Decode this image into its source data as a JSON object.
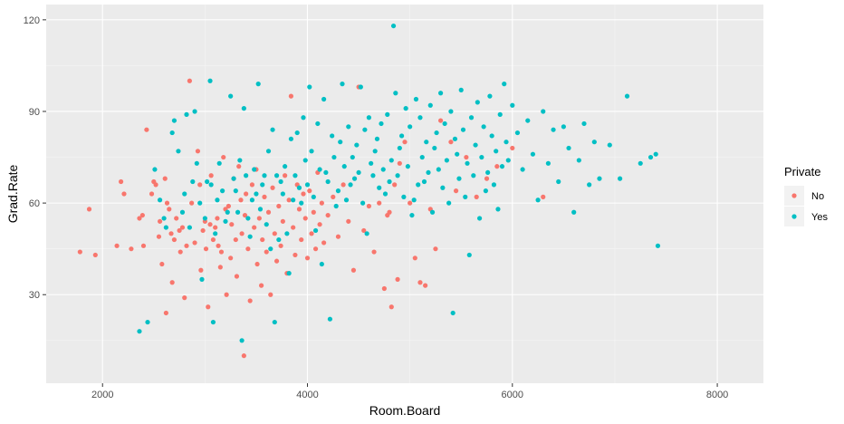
{
  "chart_data": {
    "type": "scatter",
    "xlabel": "Room.Board",
    "ylabel": "Grad.Rate",
    "xlim": [
      1450,
      8450
    ],
    "ylim": [
      1,
      125
    ],
    "x_ticks": [
      2000,
      4000,
      6000,
      8000
    ],
    "y_ticks": [
      30,
      60,
      90,
      120
    ],
    "x_tick_labels": [
      "2000",
      "4000",
      "6000",
      "8000"
    ],
    "y_tick_labels": [
      "30",
      "60",
      "90",
      "120"
    ],
    "grid": true,
    "legend": {
      "title": "Private",
      "position": "right",
      "entries": [
        {
          "label": "No",
          "color": "#F8766D"
        },
        {
          "label": "Yes",
          "color": "#00BFC4"
        }
      ]
    },
    "series": [
      {
        "name": "No",
        "color": "#F8766D",
        "points": [
          [
            1780,
            44
          ],
          [
            1870,
            58
          ],
          [
            1930,
            43
          ],
          [
            2140,
            46
          ],
          [
            2180,
            67
          ],
          [
            2210,
            63
          ],
          [
            2280,
            45
          ],
          [
            2360,
            55
          ],
          [
            2390,
            56
          ],
          [
            2400,
            46
          ],
          [
            2430,
            84
          ],
          [
            2480,
            63
          ],
          [
            2500,
            67
          ],
          [
            2520,
            66
          ],
          [
            2550,
            49
          ],
          [
            2560,
            54
          ],
          [
            2580,
            40
          ],
          [
            2610,
            68
          ],
          [
            2620,
            24
          ],
          [
            2630,
            60
          ],
          [
            2650,
            58
          ],
          [
            2670,
            50
          ],
          [
            2680,
            34
          ],
          [
            2700,
            48
          ],
          [
            2720,
            55
          ],
          [
            2750,
            51
          ],
          [
            2760,
            44
          ],
          [
            2780,
            52
          ],
          [
            2800,
            29
          ],
          [
            2820,
            46
          ],
          [
            2850,
            100
          ],
          [
            2870,
            60
          ],
          [
            2900,
            47
          ],
          [
            2930,
            77
          ],
          [
            2950,
            66
          ],
          [
            2960,
            38
          ],
          [
            2980,
            51
          ],
          [
            3000,
            54
          ],
          [
            3010,
            45
          ],
          [
            3030,
            26
          ],
          [
            3050,
            53
          ],
          [
            3060,
            69
          ],
          [
            3080,
            48
          ],
          [
            3100,
            52
          ],
          [
            3120,
            55
          ],
          [
            3130,
            46
          ],
          [
            3150,
            39
          ],
          [
            3160,
            44
          ],
          [
            3180,
            75
          ],
          [
            3200,
            58
          ],
          [
            3210,
            30
          ],
          [
            3230,
            59
          ],
          [
            3250,
            42
          ],
          [
            3260,
            53
          ],
          [
            3280,
            68
          ],
          [
            3300,
            48
          ],
          [
            3310,
            36
          ],
          [
            3330,
            72
          ],
          [
            3350,
            61
          ],
          [
            3360,
            50
          ],
          [
            3380,
            10
          ],
          [
            3390,
            56
          ],
          [
            3400,
            63
          ],
          [
            3420,
            45
          ],
          [
            3440,
            28
          ],
          [
            3460,
            66
          ],
          [
            3480,
            52
          ],
          [
            3500,
            71
          ],
          [
            3510,
            40
          ],
          [
            3530,
            55
          ],
          [
            3550,
            33
          ],
          [
            3560,
            48
          ],
          [
            3580,
            62
          ],
          [
            3600,
            44
          ],
          [
            3620,
            57
          ],
          [
            3640,
            30
          ],
          [
            3660,
            65
          ],
          [
            3680,
            50
          ],
          [
            3700,
            41
          ],
          [
            3720,
            59
          ],
          [
            3740,
            46
          ],
          [
            3760,
            54
          ],
          [
            3780,
            69
          ],
          [
            3800,
            37
          ],
          [
            3820,
            61
          ],
          [
            3840,
            95
          ],
          [
            3860,
            52
          ],
          [
            3880,
            43
          ],
          [
            3900,
            66
          ],
          [
            3920,
            58
          ],
          [
            3940,
            48
          ],
          [
            3960,
            63
          ],
          [
            3980,
            55
          ],
          [
            4000,
            42
          ],
          [
            4020,
            64
          ],
          [
            4040,
            50
          ],
          [
            4060,
            57
          ],
          [
            4080,
            45
          ],
          [
            4100,
            70
          ],
          [
            4120,
            53
          ],
          [
            4140,
            60
          ],
          [
            4160,
            47
          ],
          [
            4200,
            56
          ],
          [
            4250,
            62
          ],
          [
            4300,
            49
          ],
          [
            4350,
            66
          ],
          [
            4400,
            54
          ],
          [
            4450,
            38
          ],
          [
            4500,
            98
          ],
          [
            4550,
            51
          ],
          [
            4600,
            59
          ],
          [
            4650,
            44
          ],
          [
            4700,
            60
          ],
          [
            4750,
            32
          ],
          [
            4780,
            56
          ],
          [
            4800,
            57
          ],
          [
            4820,
            26
          ],
          [
            4850,
            66
          ],
          [
            4880,
            35
          ],
          [
            4900,
            73
          ],
          [
            4950,
            80
          ],
          [
            5000,
            60
          ],
          [
            5050,
            42
          ],
          [
            5100,
            34
          ],
          [
            5150,
            33
          ],
          [
            5200,
            58
          ],
          [
            5250,
            45
          ],
          [
            5300,
            87
          ],
          [
            5400,
            80
          ],
          [
            5450,
            64
          ],
          [
            5550,
            75
          ],
          [
            5650,
            62
          ],
          [
            5750,
            68
          ],
          [
            5850,
            72
          ],
          [
            6000,
            78
          ],
          [
            6300,
            62
          ]
        ]
      },
      {
        "name": "Yes",
        "color": "#00BFC4",
        "points": [
          [
            2360,
            18
          ],
          [
            2440,
            21
          ],
          [
            2510,
            71
          ],
          [
            2560,
            61
          ],
          [
            2600,
            55
          ],
          [
            2620,
            52
          ],
          [
            2680,
            83
          ],
          [
            2700,
            87
          ],
          [
            2740,
            77
          ],
          [
            2780,
            57
          ],
          [
            2800,
            63
          ],
          [
            2820,
            89
          ],
          [
            2850,
            52
          ],
          [
            2880,
            67
          ],
          [
            2900,
            90
          ],
          [
            2920,
            73
          ],
          [
            2950,
            60
          ],
          [
            2970,
            35
          ],
          [
            3000,
            55
          ],
          [
            3020,
            67
          ],
          [
            3050,
            100
          ],
          [
            3060,
            66
          ],
          [
            3080,
            21
          ],
          [
            3100,
            50
          ],
          [
            3120,
            61
          ],
          [
            3140,
            73
          ],
          [
            3170,
            64
          ],
          [
            3200,
            54
          ],
          [
            3220,
            57
          ],
          [
            3250,
            95
          ],
          [
            3280,
            68
          ],
          [
            3300,
            64
          ],
          [
            3320,
            57
          ],
          [
            3340,
            74
          ],
          [
            3360,
            15
          ],
          [
            3380,
            91
          ],
          [
            3400,
            69
          ],
          [
            3420,
            55
          ],
          [
            3440,
            49
          ],
          [
            3460,
            61
          ],
          [
            3480,
            71
          ],
          [
            3500,
            63
          ],
          [
            3520,
            99
          ],
          [
            3540,
            58
          ],
          [
            3560,
            66
          ],
          [
            3580,
            69
          ],
          [
            3600,
            53
          ],
          [
            3620,
            77
          ],
          [
            3640,
            45
          ],
          [
            3660,
            84
          ],
          [
            3680,
            21
          ],
          [
            3700,
            69
          ],
          [
            3720,
            48
          ],
          [
            3740,
            67
          ],
          [
            3760,
            63
          ],
          [
            3780,
            72
          ],
          [
            3800,
            50
          ],
          [
            3820,
            37
          ],
          [
            3840,
            81
          ],
          [
            3860,
            61
          ],
          [
            3880,
            69
          ],
          [
            3900,
            83
          ],
          [
            3920,
            65
          ],
          [
            3940,
            60
          ],
          [
            3960,
            88
          ],
          [
            3980,
            74
          ],
          [
            4000,
            66
          ],
          [
            4020,
            98
          ],
          [
            4040,
            77
          ],
          [
            4060,
            62
          ],
          [
            4080,
            51
          ],
          [
            4100,
            86
          ],
          [
            4120,
            71
          ],
          [
            4140,
            40
          ],
          [
            4160,
            94
          ],
          [
            4180,
            70
          ],
          [
            4200,
            67
          ],
          [
            4220,
            22
          ],
          [
            4240,
            82
          ],
          [
            4260,
            75
          ],
          [
            4280,
            59
          ],
          [
            4300,
            64
          ],
          [
            4320,
            80
          ],
          [
            4340,
            99
          ],
          [
            4360,
            72
          ],
          [
            4380,
            61
          ],
          [
            4400,
            85
          ],
          [
            4420,
            66
          ],
          [
            4440,
            75
          ],
          [
            4460,
            68
          ],
          [
            4480,
            79
          ],
          [
            4500,
            70
          ],
          [
            4520,
            98
          ],
          [
            4540,
            60
          ],
          [
            4560,
            84
          ],
          [
            4580,
            50
          ],
          [
            4600,
            88
          ],
          [
            4620,
            73
          ],
          [
            4640,
            69
          ],
          [
            4660,
            77
          ],
          [
            4680,
            81
          ],
          [
            4700,
            65
          ],
          [
            4720,
            86
          ],
          [
            4740,
            71
          ],
          [
            4760,
            63
          ],
          [
            4780,
            89
          ],
          [
            4800,
            67
          ],
          [
            4820,
            74
          ],
          [
            4840,
            118
          ],
          [
            4860,
            96
          ],
          [
            4880,
            69
          ],
          [
            4900,
            78
          ],
          [
            4920,
            82
          ],
          [
            4940,
            62
          ],
          [
            4960,
            91
          ],
          [
            4980,
            72
          ],
          [
            5000,
            85
          ],
          [
            5020,
            56
          ],
          [
            5040,
            61
          ],
          [
            5060,
            94
          ],
          [
            5080,
            66
          ],
          [
            5100,
            88
          ],
          [
            5120,
            75
          ],
          [
            5140,
            67
          ],
          [
            5160,
            80
          ],
          [
            5180,
            70
          ],
          [
            5200,
            92
          ],
          [
            5220,
            57
          ],
          [
            5240,
            78
          ],
          [
            5260,
            83
          ],
          [
            5280,
            71
          ],
          [
            5300,
            96
          ],
          [
            5320,
            65
          ],
          [
            5340,
            86
          ],
          [
            5360,
            74
          ],
          [
            5380,
            60
          ],
          [
            5400,
            90
          ],
          [
            5420,
            24
          ],
          [
            5440,
            81
          ],
          [
            5460,
            76
          ],
          [
            5480,
            68
          ],
          [
            5500,
            97
          ],
          [
            5520,
            84
          ],
          [
            5540,
            62
          ],
          [
            5560,
            73
          ],
          [
            5580,
            43
          ],
          [
            5600,
            88
          ],
          [
            5620,
            69
          ],
          [
            5640,
            79
          ],
          [
            5660,
            93
          ],
          [
            5680,
            55
          ],
          [
            5700,
            75
          ],
          [
            5720,
            85
          ],
          [
            5740,
            64
          ],
          [
            5760,
            70
          ],
          [
            5780,
            95
          ],
          [
            5800,
            82
          ],
          [
            5820,
            66
          ],
          [
            5840,
            77
          ],
          [
            5860,
            58
          ],
          [
            5880,
            89
          ],
          [
            5900,
            72
          ],
          [
            5920,
            99
          ],
          [
            5940,
            80
          ],
          [
            5960,
            74
          ],
          [
            6000,
            92
          ],
          [
            6050,
            83
          ],
          [
            6100,
            71
          ],
          [
            6150,
            87
          ],
          [
            6200,
            76
          ],
          [
            6250,
            61
          ],
          [
            6300,
            90
          ],
          [
            6350,
            73
          ],
          [
            6400,
            84
          ],
          [
            6450,
            67
          ],
          [
            6500,
            85
          ],
          [
            6550,
            78
          ],
          [
            6600,
            57
          ],
          [
            6650,
            74
          ],
          [
            6700,
            86
          ],
          [
            6750,
            66
          ],
          [
            6800,
            80
          ],
          [
            6850,
            68
          ],
          [
            6950,
            79
          ],
          [
            7050,
            68
          ],
          [
            7120,
            95
          ],
          [
            7250,
            73
          ],
          [
            7350,
            75
          ],
          [
            7400,
            76
          ],
          [
            7420,
            46
          ]
        ]
      }
    ]
  }
}
